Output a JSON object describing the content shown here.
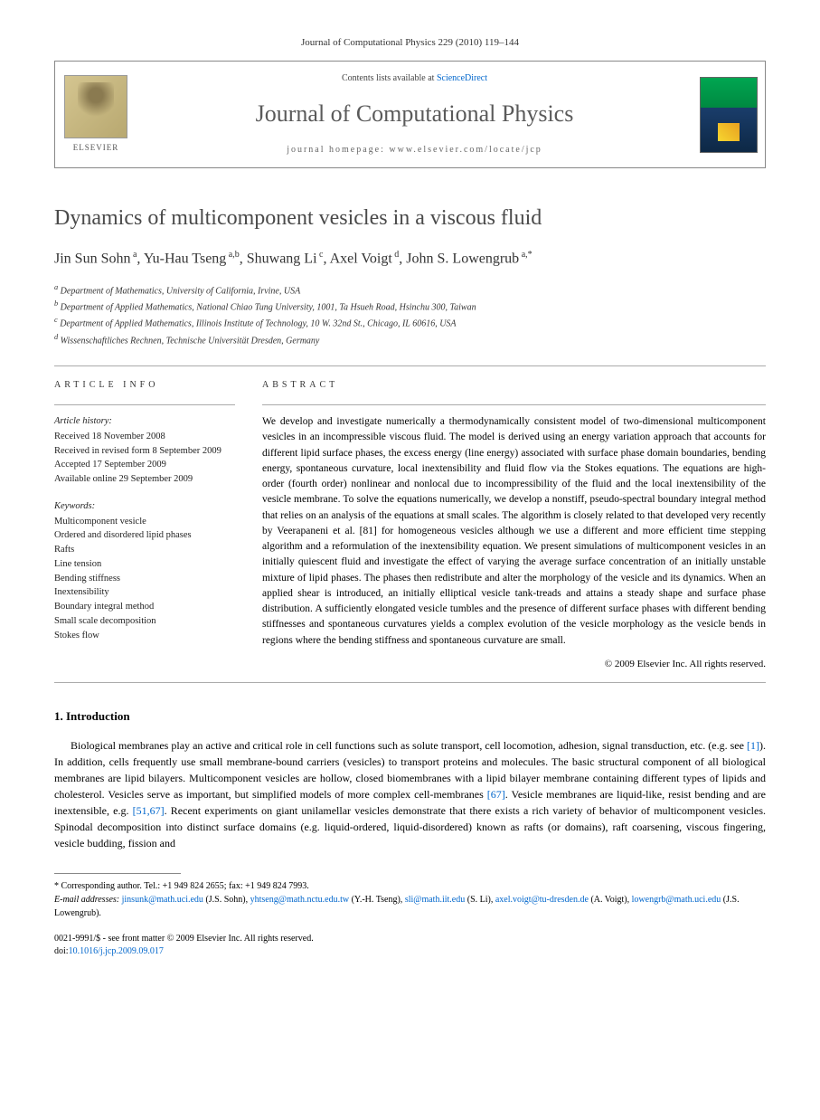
{
  "citation": "Journal of Computational Physics 229 (2010) 119–144",
  "header": {
    "contents_prefix": "Contents lists available at ",
    "contents_link": "ScienceDirect",
    "journal_name": "Journal of Computational Physics",
    "homepage_prefix": "journal homepage: ",
    "homepage_url": "www.elsevier.com/locate/jcp",
    "elsevier_label": "ELSEVIER"
  },
  "title": "Dynamics of multicomponent vesicles in a viscous fluid",
  "authors_html": "Jin Sun Sohn<sup> a</sup>, Yu-Hau Tseng<sup> a,b</sup>, Shuwang Li<sup> c</sup>, Axel Voigt<sup> d</sup>, John S. Lowengrub<sup> a,*</sup>",
  "affiliations": [
    "a Department of Mathematics, University of California, Irvine, USA",
    "b Department of Applied Mathematics, National Chiao Tung University, 1001, Ta Hsueh Road, Hsinchu 300, Taiwan",
    "c Department of Applied Mathematics, Illinois Institute of Technology, 10 W. 32nd St., Chicago, IL 60616, USA",
    "d Wissenschaftliches Rechnen, Technische Universität Dresden, Germany"
  ],
  "article_info": {
    "label": "ARTICLE INFO",
    "history_head": "Article history:",
    "history": [
      "Received 18 November 2008",
      "Received in revised form 8 September 2009",
      "Accepted 17 September 2009",
      "Available online 29 September 2009"
    ],
    "keywords_head": "Keywords:",
    "keywords": [
      "Multicomponent vesicle",
      "Ordered and disordered lipid phases",
      "Rafts",
      "Line tension",
      "Bending stiffness",
      "Inextensibility",
      "Boundary integral method",
      "Small scale decomposition",
      "Stokes flow"
    ]
  },
  "abstract": {
    "label": "ABSTRACT",
    "text": "We develop and investigate numerically a thermodynamically consistent model of two-dimensional multicomponent vesicles in an incompressible viscous fluid. The model is derived using an energy variation approach that accounts for different lipid surface phases, the excess energy (line energy) associated with surface phase domain boundaries, bending energy, spontaneous curvature, local inextensibility and fluid flow via the Stokes equations. The equations are high-order (fourth order) nonlinear and nonlocal due to incompressibility of the fluid and the local inextensibility of the vesicle membrane. To solve the equations numerically, we develop a nonstiff, pseudo-spectral boundary integral method that relies on an analysis of the equations at small scales. The algorithm is closely related to that developed very recently by Veerapaneni et al. [81] for homogeneous vesicles although we use a different and more efficient time stepping algorithm and a reformulation of the inextensibility equation. We present simulations of multicomponent vesicles in an initially quiescent fluid and investigate the effect of varying the average surface concentration of an initially unstable mixture of lipid phases. The phases then redistribute and alter the morphology of the vesicle and its dynamics. When an applied shear is introduced, an initially elliptical vesicle tank-treads and attains a steady shape and surface phase distribution. A sufficiently elongated vesicle tumbles and the presence of different surface phases with different bending stiffnesses and spontaneous curvatures yields a complex evolution of the vesicle morphology as the vesicle bends in regions where the bending stiffness and spontaneous curvature are small.",
    "copyright": "© 2009 Elsevier Inc. All rights reserved."
  },
  "intro": {
    "heading": "1. Introduction",
    "para1_pre": "Biological membranes play an active and critical role in cell functions such as solute transport, cell locomotion, adhesion, signal transduction, etc. (e.g. see ",
    "ref1": "[1]",
    "para1_mid1": "). In addition, cells frequently use small membrane-bound carriers (vesicles) to transport proteins and molecules. The basic structural component of all biological membranes are lipid bilayers. Multicomponent vesicles are hollow, closed biomembranes with a lipid bilayer membrane containing different types of lipids and cholesterol. Vesicles serve as important, but simplified models of more complex cell-membranes ",
    "ref67a": "[67]",
    "para1_mid2": ". Vesicle membranes are liquid-like, resist bending and are inextensible, e.g. ",
    "ref5167": "[51,67]",
    "para1_end": ". Recent experiments on giant unilamellar vesicles demonstrate that there exists a rich variety of behavior of multicomponent vesicles. Spinodal decomposition into distinct surface domains (e.g. liquid-ordered, liquid-disordered) known as rafts (or domains), raft coarsening, viscous fingering, vesicle budding, fission and"
  },
  "footnotes": {
    "corresponding": "* Corresponding author. Tel.: +1 949 824 2655; fax: +1 949 824 7993.",
    "email_label": "E-mail addresses: ",
    "emails": [
      {
        "addr": "jinsunk@math.uci.edu",
        "who": " (J.S. Sohn), "
      },
      {
        "addr": "yhtseng@math.nctu.edu.tw",
        "who": " (Y.-H. Tseng), "
      },
      {
        "addr": "sli@math.iit.edu",
        "who": " (S. Li), "
      },
      {
        "addr": "axel.voigt@tu-dresden.de",
        "who": " (A. Voigt), "
      },
      {
        "addr": "lowengrb@math.uci.edu",
        "who": " (J.S. Lowengrub)."
      }
    ]
  },
  "bottom": {
    "issn_line": "0021-9991/$ - see front matter © 2009 Elsevier Inc. All rights reserved.",
    "doi_label": "doi:",
    "doi": "10.1016/j.jcp.2009.09.017"
  },
  "colors": {
    "link": "#0066cc",
    "title_gray": "#4a4a4a",
    "border": "#888888"
  }
}
